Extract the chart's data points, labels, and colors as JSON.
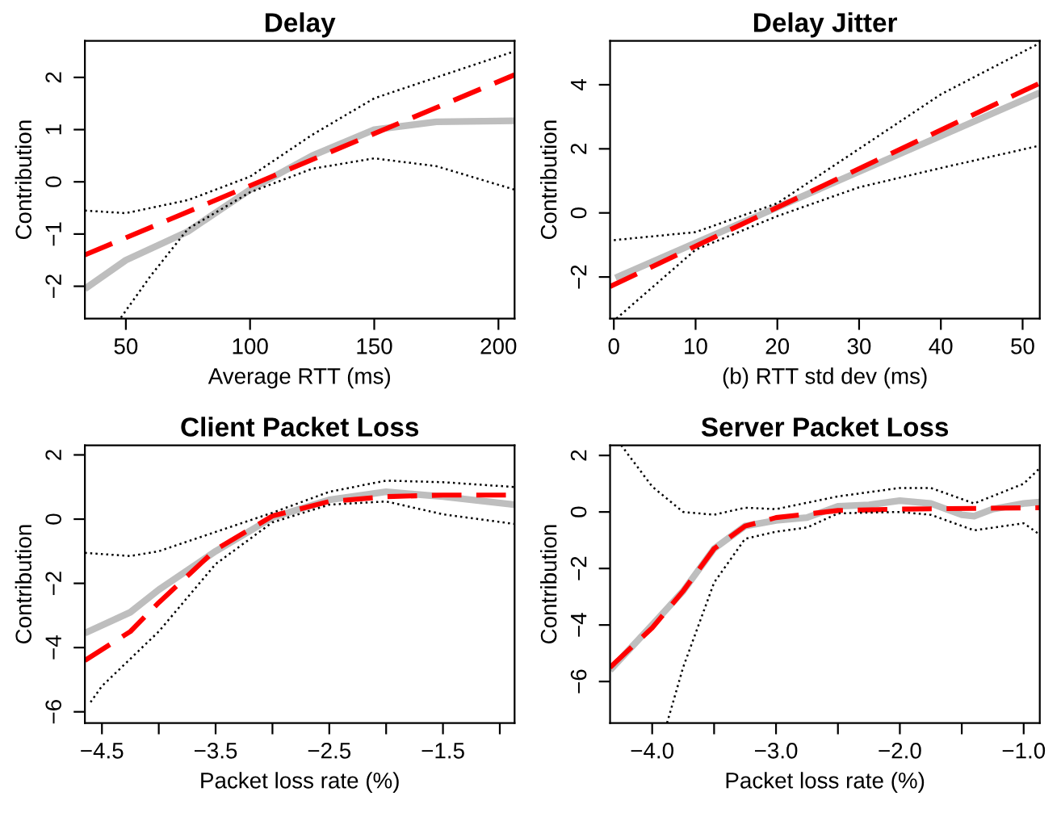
{
  "chart_data": [
    {
      "type": "line",
      "title": "Delay",
      "xlabel": "Average RTT (ms)",
      "ylabel": "Contribution",
      "xlim": [
        33.5,
        206.5
      ],
      "ylim": [
        -2.62,
        2.7
      ],
      "xticks": [
        50,
        100,
        150,
        200
      ],
      "yticks": [
        {
          "value": -2,
          "label": "−2"
        },
        {
          "value": -1,
          "label": "−1"
        },
        0,
        1,
        2
      ],
      "grid": false,
      "legend": false,
      "marker": "none",
      "series": [
        {
          "color": "#bebebe",
          "line_style": "solid",
          "x": [
            33.5,
            50,
            75,
            100,
            125,
            150,
            175,
            206.5
          ],
          "values": [
            -2.05,
            -1.5,
            -0.95,
            -0.15,
            0.5,
            1.0,
            1.15,
            1.17
          ]
        },
        {
          "color": "#ff0000",
          "line_style": "dashed",
          "x": [
            33.5,
            206.5
          ],
          "values": [
            -1.4,
            2.05
          ]
        },
        {
          "color": "#000000",
          "line_style": "dotted",
          "x": [
            33.5,
            50,
            75,
            100,
            125,
            150,
            175,
            206.5
          ],
          "values": [
            -0.55,
            -0.6,
            -0.35,
            0.1,
            0.9,
            1.6,
            2.0,
            2.5
          ]
        },
        {
          "color": "#000000",
          "line_style": "dotted",
          "x": [
            48,
            60,
            75,
            100,
            125,
            150,
            175,
            206.5
          ],
          "values": [
            -2.6,
            -1.8,
            -0.9,
            -0.2,
            0.25,
            0.45,
            0.3,
            -0.15
          ]
        }
      ]
    },
    {
      "type": "line",
      "title": "Delay Jitter",
      "xlabel": "(b) RTT std dev (ms)",
      "ylabel": "Contribution",
      "xlim": [
        -0.46,
        52.1
      ],
      "ylim": [
        -3.3,
        5.37
      ],
      "xticks": [
        0,
        10,
        20,
        30,
        40,
        50
      ],
      "yticks": [
        {
          "value": -2,
          "label": "−2"
        },
        0,
        2,
        4
      ],
      "grid": false,
      "legend": false,
      "marker": "none",
      "series": [
        {
          "color": "#bebebe",
          "line_style": "solid",
          "x": [
            0.2,
            52.1
          ],
          "values": [
            -2.03,
            3.75
          ]
        },
        {
          "color": "#ff0000",
          "line_style": "dashed",
          "x": [
            -0.46,
            52.1
          ],
          "values": [
            -2.3,
            4.05
          ]
        },
        {
          "color": "#000000",
          "line_style": "dotted",
          "x": [
            0,
            10,
            20,
            30,
            40,
            52.1
          ],
          "values": [
            -0.85,
            -0.6,
            0.3,
            2.0,
            3.7,
            5.3
          ]
        },
        {
          "color": "#000000",
          "line_style": "dotted",
          "x": [
            0.3,
            10,
            20,
            30,
            40,
            52.1
          ],
          "values": [
            -3.3,
            -1.15,
            -0.1,
            0.8,
            1.4,
            2.1
          ]
        }
      ]
    },
    {
      "type": "line",
      "title": "Client Packet Loss",
      "xlabel": "Packet loss rate (%)",
      "ylabel": "Contribution",
      "xlim": [
        -4.65,
        -0.87
      ],
      "ylim": [
        -6.35,
        2.3
      ],
      "xticks": [
        {
          "value": -4.5,
          "label": "−4.5"
        },
        {
          "value": -4.0,
          "label": null
        },
        {
          "value": -3.5,
          "label": "−3.5"
        },
        {
          "value": -3.0,
          "label": null
        },
        {
          "value": -2.5,
          "label": "−2.5"
        },
        {
          "value": -2.0,
          "label": null
        },
        {
          "value": -1.5,
          "label": "−1.5"
        },
        {
          "value": -1.0,
          "label": null
        }
      ],
      "yticks": [
        {
          "value": -6,
          "label": "−6"
        },
        {
          "value": -4,
          "label": "−4"
        },
        {
          "value": -2,
          "label": "−2"
        },
        0,
        2
      ],
      "grid": false,
      "legend": false,
      "marker": "none",
      "series": [
        {
          "color": "#bebebe",
          "line_style": "solid",
          "x": [
            -4.65,
            -4.25,
            -4.0,
            -3.5,
            -3.0,
            -2.5,
            -2.0,
            -1.5,
            -0.87
          ],
          "values": [
            -3.55,
            -2.9,
            -2.2,
            -1.0,
            0.05,
            0.6,
            0.85,
            0.7,
            0.45
          ]
        },
        {
          "color": "#ff0000",
          "line_style": "dashed",
          "x": [
            -4.65,
            -4.25,
            -4.0,
            -3.5,
            -3.0,
            -2.5,
            -2.0,
            -1.5,
            -0.87
          ],
          "values": [
            -4.4,
            -3.5,
            -2.6,
            -0.95,
            0.1,
            0.55,
            0.7,
            0.75,
            0.75
          ]
        },
        {
          "color": "#000000",
          "line_style": "dotted",
          "x": [
            -4.65,
            -4.25,
            -4.0,
            -3.5,
            -3.0,
            -2.5,
            -2.0,
            -1.5,
            -0.87
          ],
          "values": [
            -1.05,
            -1.15,
            -1.0,
            -0.4,
            0.2,
            0.85,
            1.2,
            1.15,
            1.0
          ]
        },
        {
          "color": "#000000",
          "line_style": "dotted",
          "x": [
            -4.6,
            -4.5,
            -4.0,
            -3.5,
            -3.0,
            -2.5,
            -2.0,
            -1.5,
            -0.87
          ],
          "values": [
            -5.7,
            -5.2,
            -3.5,
            -1.4,
            -0.1,
            0.45,
            0.55,
            0.15,
            -0.15
          ]
        }
      ]
    },
    {
      "type": "line",
      "title": "Server Packet Loss",
      "xlabel": "Packet loss rate (%)",
      "ylabel": "Contribution",
      "xlim": [
        -4.34,
        -0.87
      ],
      "ylim": [
        -7.47,
        2.36
      ],
      "xticks": [
        {
          "value": -4.0,
          "label": "−4.0"
        },
        {
          "value": -3.5,
          "label": null
        },
        {
          "value": -3.0,
          "label": "−3.0"
        },
        {
          "value": -2.5,
          "label": null
        },
        {
          "value": -2.0,
          "label": "−2.0"
        },
        {
          "value": -1.5,
          "label": null
        },
        {
          "value": -1.0,
          "label": "−1.0"
        }
      ],
      "yticks": [
        {
          "value": -6,
          "label": "−6"
        },
        {
          "value": -4,
          "label": "−4"
        },
        {
          "value": -2,
          "label": "−2"
        },
        0,
        2
      ],
      "grid": false,
      "legend": false,
      "marker": "none",
      "series": [
        {
          "color": "#bebebe",
          "line_style": "solid",
          "x": [
            -4.34,
            -4.0,
            -3.75,
            -3.5,
            -3.25,
            -3.0,
            -2.75,
            -2.5,
            -2.25,
            -2.0,
            -1.75,
            -1.5,
            -1.4,
            -1.25,
            -1.0,
            -0.87
          ],
          "values": [
            -5.6,
            -4.0,
            -2.8,
            -1.3,
            -0.5,
            -0.3,
            -0.2,
            0.2,
            0.25,
            0.4,
            0.3,
            -0.1,
            -0.15,
            0.1,
            0.3,
            0.35
          ]
        },
        {
          "color": "#ff0000",
          "line_style": "dashed",
          "x": [
            -4.34,
            -4.0,
            -3.75,
            -3.5,
            -3.25,
            -3.0,
            -2.5,
            -2.0,
            -0.87
          ],
          "values": [
            -5.5,
            -4.1,
            -2.8,
            -1.3,
            -0.5,
            -0.2,
            0.05,
            0.1,
            0.15
          ]
        },
        {
          "color": "#000000",
          "line_style": "dotted",
          "x": [
            -4.25,
            -4.0,
            -3.75,
            -3.5,
            -3.25,
            -3.0,
            -2.5,
            -2.0,
            -1.75,
            -1.4,
            -1.0,
            -0.87
          ],
          "values": [
            2.36,
            0.9,
            0.0,
            -0.1,
            0.15,
            0.1,
            0.55,
            0.85,
            0.85,
            0.3,
            1.0,
            1.55
          ]
        },
        {
          "color": "#000000",
          "line_style": "dotted",
          "x": [
            -3.88,
            -3.75,
            -3.5,
            -3.25,
            -3.0,
            -2.75,
            -2.5,
            -2.0,
            -1.75,
            -1.4,
            -1.0,
            -0.87
          ],
          "values": [
            -7.47,
            -5.5,
            -2.5,
            -0.95,
            -0.7,
            -0.55,
            -0.05,
            0.0,
            -0.1,
            -0.65,
            -0.4,
            -0.8
          ]
        }
      ]
    }
  ]
}
